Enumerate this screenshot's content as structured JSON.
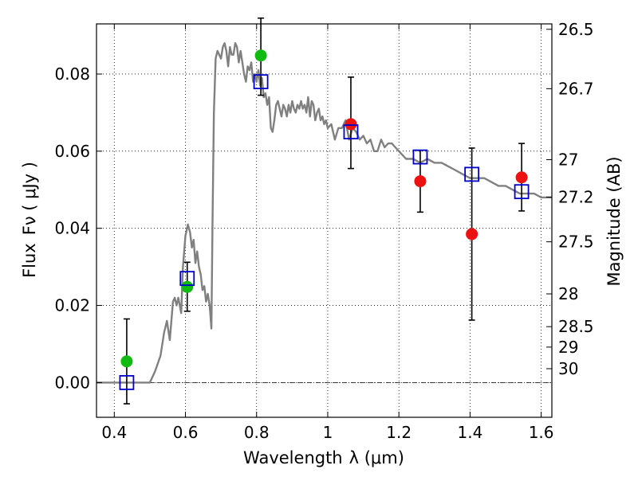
{
  "chart_data": {
    "type": "scatter",
    "x_axis": {
      "label": "Wavelength",
      "label_math": "λ (μm)",
      "range": [
        0.35,
        1.63
      ],
      "ticks": [
        0.4,
        0.6,
        0.8,
        1.0,
        1.2,
        1.4,
        1.6
      ],
      "tick_labels": [
        "0.4",
        "0.6",
        "0.8",
        "1",
        "1.2",
        "1.4",
        "1.6"
      ]
    },
    "y_axis": {
      "label": "Flux",
      "label_math": "Fν ( μJy )",
      "range": [
        -0.009,
        0.093
      ],
      "ticks": [
        0.0,
        0.02,
        0.04,
        0.06,
        0.08
      ],
      "tick_labels": [
        "0.00",
        "0.02",
        "0.04",
        "0.06",
        "0.08"
      ]
    },
    "y2_axis": {
      "label": "Magnitude (AB)",
      "ticks": [
        {
          "label": "26.5",
          "flux": 0.0916
        },
        {
          "label": "26.7",
          "flux": 0.0762
        },
        {
          "label": "27",
          "flux": 0.0578
        },
        {
          "label": "27.2",
          "flux": 0.0481
        },
        {
          "label": "27.5",
          "flux": 0.0365
        },
        {
          "label": "28",
          "flux": 0.023
        },
        {
          "label": "28.5",
          "flux": 0.0145
        },
        {
          "label": "29",
          "flux": 0.0092
        },
        {
          "label": "30",
          "flux": 0.0036
        }
      ]
    },
    "grid": true,
    "zero_line": true,
    "colors": {
      "model": "#808080",
      "green_points": "#11bb11",
      "red_points": "#ee1111",
      "model_photometry": "#0000cc",
      "error_bars": "#000000"
    },
    "series": [
      {
        "type": "line",
        "x": [
          0.35,
          0.4,
          0.44,
          0.48,
          0.5,
          0.515,
          0.53,
          0.54,
          0.548,
          0.556,
          0.565,
          0.57,
          0.575,
          0.58,
          0.588,
          0.593,
          0.6,
          0.607,
          0.613,
          0.618,
          0.623,
          0.628,
          0.633,
          0.638,
          0.643,
          0.648,
          0.653,
          0.658,
          0.663,
          0.668,
          0.673,
          0.676,
          0.68,
          0.685,
          0.69,
          0.7,
          0.705,
          0.71,
          0.715,
          0.72,
          0.725,
          0.73,
          0.735,
          0.74,
          0.745,
          0.75,
          0.755,
          0.76,
          0.765,
          0.77,
          0.775,
          0.78,
          0.785,
          0.79,
          0.795,
          0.8,
          0.805,
          0.81,
          0.815,
          0.82,
          0.825,
          0.83,
          0.835,
          0.84,
          0.845,
          0.85,
          0.855,
          0.86,
          0.865,
          0.87,
          0.875,
          0.88,
          0.885,
          0.89,
          0.895,
          0.9,
          0.905,
          0.91,
          0.915,
          0.92,
          0.925,
          0.93,
          0.935,
          0.94,
          0.945,
          0.95,
          0.955,
          0.96,
          0.965,
          0.97,
          0.975,
          0.98,
          0.985,
          0.99,
          0.995,
          1.0,
          1.01,
          1.02,
          1.03,
          1.04,
          1.05,
          1.06,
          1.07,
          1.08,
          1.09,
          1.1,
          1.11,
          1.12,
          1.13,
          1.14,
          1.15,
          1.16,
          1.17,
          1.18,
          1.19,
          1.2,
          1.22,
          1.24,
          1.26,
          1.28,
          1.3,
          1.32,
          1.34,
          1.36,
          1.38,
          1.4,
          1.42,
          1.44,
          1.46,
          1.48,
          1.5,
          1.52,
          1.54,
          1.56,
          1.58,
          1.6,
          1.63
        ],
        "values": [
          0.0,
          0.0,
          0.0,
          0.0,
          0.0,
          0.003,
          0.007,
          0.013,
          0.016,
          0.011,
          0.021,
          0.022,
          0.02,
          0.022,
          0.018,
          0.03,
          0.038,
          0.041,
          0.039,
          0.035,
          0.037,
          0.031,
          0.034,
          0.03,
          0.028,
          0.024,
          0.025,
          0.021,
          0.023,
          0.02,
          0.014,
          0.04,
          0.07,
          0.084,
          0.086,
          0.084,
          0.087,
          0.088,
          0.086,
          0.082,
          0.087,
          0.085,
          0.085,
          0.088,
          0.087,
          0.083,
          0.086,
          0.083,
          0.08,
          0.078,
          0.082,
          0.081,
          0.083,
          0.078,
          0.08,
          0.078,
          0.081,
          0.077,
          0.079,
          0.074,
          0.075,
          0.072,
          0.074,
          0.066,
          0.065,
          0.068,
          0.072,
          0.073,
          0.071,
          0.069,
          0.072,
          0.071,
          0.069,
          0.072,
          0.07,
          0.073,
          0.071,
          0.07,
          0.072,
          0.071,
          0.073,
          0.071,
          0.072,
          0.07,
          0.074,
          0.069,
          0.073,
          0.072,
          0.068,
          0.07,
          0.071,
          0.068,
          0.069,
          0.067,
          0.068,
          0.066,
          0.067,
          0.063,
          0.066,
          0.066,
          0.068,
          0.063,
          0.066,
          0.065,
          0.063,
          0.064,
          0.062,
          0.063,
          0.06,
          0.06,
          0.063,
          0.061,
          0.062,
          0.062,
          0.061,
          0.06,
          0.058,
          0.058,
          0.057,
          0.058,
          0.057,
          0.057,
          0.056,
          0.055,
          0.054,
          0.053,
          0.053,
          0.053,
          0.052,
          0.051,
          0.051,
          0.05,
          0.049,
          0.049,
          0.049,
          0.048,
          0.048
        ]
      },
      {
        "type": "scatter",
        "marker": "filled-circle",
        "color": "green",
        "x": [
          0.435,
          0.605,
          0.812
        ],
        "values": [
          0.0055,
          0.0248,
          0.0848
        ]
      },
      {
        "type": "scatter",
        "marker": "filled-circle",
        "color": "red",
        "x": [
          1.065,
          1.26,
          1.405,
          1.545
        ],
        "values": [
          0.067,
          0.0522,
          0.0385,
          0.0532
        ]
      },
      {
        "type": "scatter",
        "marker": "open-square",
        "color": "blue",
        "x": [
          0.435,
          0.605,
          0.812,
          1.065,
          1.26,
          1.405,
          1.545
        ],
        "values": [
          0.0,
          0.027,
          0.078,
          0.065,
          0.0585,
          0.054,
          0.0495
        ]
      },
      {
        "type": "errorbar",
        "x": [
          0.435,
          0.605,
          0.812,
          1.065,
          1.26,
          1.405,
          1.545
        ],
        "low": [
          -0.0055,
          0.0185,
          0.0745,
          0.0555,
          0.0442,
          0.0162,
          0.0445
        ],
        "high": [
          0.0165,
          0.0312,
          0.0945,
          0.0792,
          0.0602,
          0.0608,
          0.062
        ]
      }
    ]
  }
}
